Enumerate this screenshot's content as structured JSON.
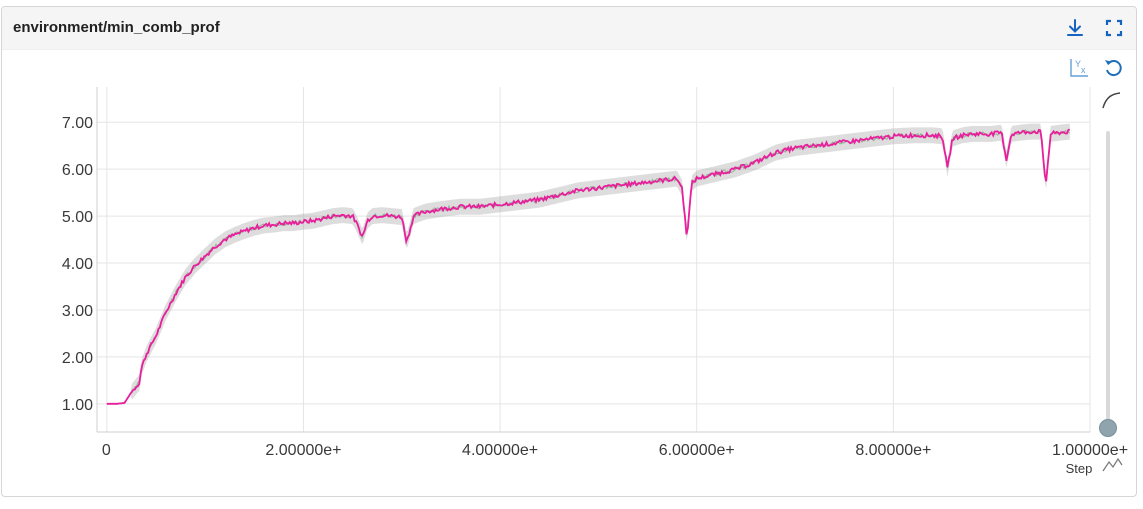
{
  "title": "environment/min_comb_prof",
  "icons": {
    "download": "download-icon",
    "fullscreen": "fullscreen-icon",
    "log_scale": "y-axis-log-toggle-icon",
    "reset": "reset-zoom-icon",
    "smoothing": "smoothing-curve-icon",
    "series": "series-chart-icon"
  },
  "colors": {
    "series_main": "#e91e9c",
    "series_band": "#9e9e9e",
    "series_secondary": "#2e7d32",
    "grid": "#e5e5e5",
    "accent": "#1565c0"
  },
  "chart_data": {
    "type": "line",
    "title": "environment/min_comb_prof",
    "xlabel": "Step",
    "ylabel": "",
    "xlim": [
      -10000,
      1000000
    ],
    "ylim": [
      0.4,
      7.75
    ],
    "grid": true,
    "x_ticks": [
      "0",
      "2.00000e+",
      "4.00000e+",
      "6.00000e+",
      "8.00000e+",
      "1.00000e+"
    ],
    "x_tick_values": [
      0,
      200000,
      400000,
      600000,
      800000,
      1000000
    ],
    "y_ticks": [
      "1.00",
      "2.00",
      "3.00",
      "4.00",
      "5.00",
      "6.00",
      "7.00"
    ],
    "y_tick_values": [
      1,
      2,
      3,
      4,
      5,
      6,
      7
    ],
    "series": [
      {
        "x": [
          0,
          10000,
          18000,
          25000,
          33000,
          35000,
          40000,
          45000,
          50000,
          55000,
          60000,
          65000,
          70000,
          80000,
          90000,
          100000,
          110000,
          120000,
          130000,
          140000,
          150000,
          160000,
          170000,
          180000,
          190000,
          200000,
          210000,
          220000,
          230000,
          240000,
          250000,
          255000,
          260000,
          265000,
          270000,
          280000,
          290000,
          300000,
          305000,
          312000,
          318000,
          325000,
          340000,
          360000,
          380000,
          400000,
          420000,
          440000,
          460000,
          480000,
          500000,
          520000,
          540000,
          560000,
          580000,
          585000,
          590000,
          595000,
          600000,
          620000,
          640000,
          660000,
          680000,
          700000,
          720000,
          740000,
          760000,
          780000,
          800000,
          820000,
          840000,
          850000,
          855000,
          860000,
          870000,
          880000,
          900000,
          910000,
          915000,
          920000,
          930000,
          940000,
          950000,
          955000,
          960000,
          970000,
          980000
        ],
        "y": [
          1.0,
          1.0,
          1.02,
          1.25,
          1.45,
          1.75,
          2.05,
          2.25,
          2.45,
          2.7,
          2.95,
          3.15,
          3.35,
          3.7,
          3.95,
          4.15,
          4.35,
          4.5,
          4.6,
          4.68,
          4.75,
          4.8,
          4.82,
          4.85,
          4.85,
          4.88,
          4.9,
          4.95,
          5.0,
          5.02,
          5.0,
          4.8,
          4.55,
          4.9,
          5.0,
          5.02,
          5.0,
          4.98,
          4.45,
          5.0,
          5.05,
          5.1,
          5.15,
          5.2,
          5.2,
          5.25,
          5.3,
          5.35,
          5.45,
          5.55,
          5.6,
          5.65,
          5.7,
          5.75,
          5.8,
          5.6,
          4.55,
          5.7,
          5.8,
          5.9,
          6.0,
          6.15,
          6.35,
          6.45,
          6.5,
          6.55,
          6.6,
          6.65,
          6.7,
          6.72,
          6.72,
          6.7,
          6.0,
          6.65,
          6.72,
          6.75,
          6.75,
          6.78,
          6.2,
          6.75,
          6.78,
          6.8,
          6.8,
          5.65,
          6.75,
          6.78,
          6.8
        ]
      }
    ]
  }
}
